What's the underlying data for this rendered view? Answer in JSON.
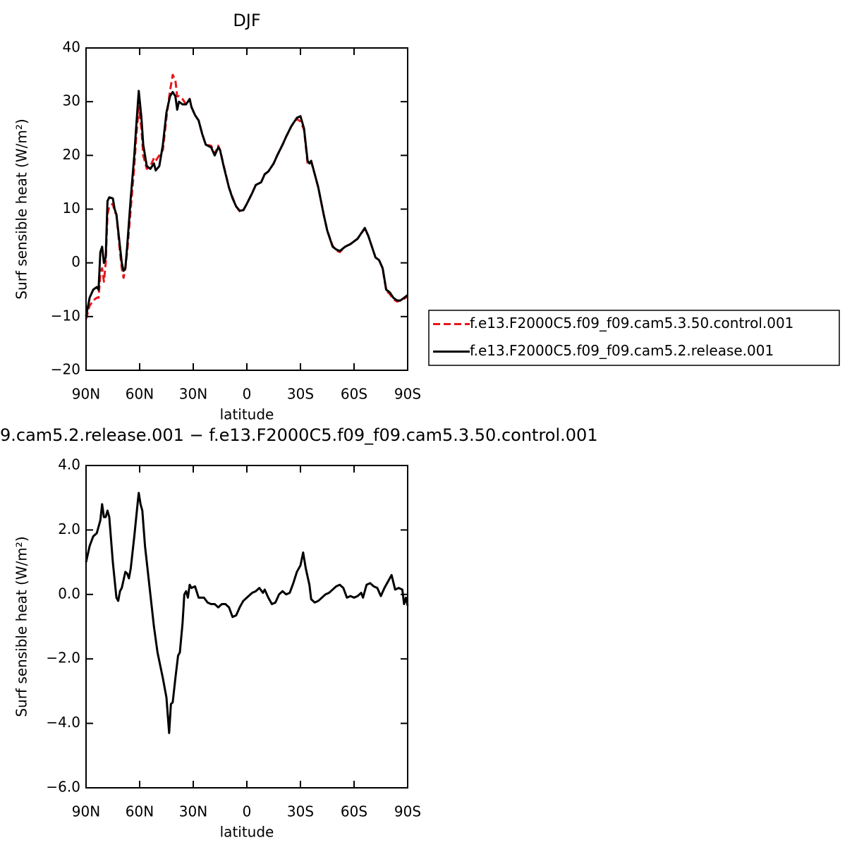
{
  "chart_data": [
    {
      "type": "line",
      "title": "DJF",
      "x_label": "latitude",
      "y_label": "Surf sensible heat (W/m²)",
      "xlim": [
        90,
        -90
      ],
      "ylim": [
        -20,
        40
      ],
      "xticks": [
        {
          "value": 90,
          "label": "90N"
        },
        {
          "value": 60,
          "label": "60N"
        },
        {
          "value": 30,
          "label": "30N"
        },
        0,
        {
          "value": -30,
          "label": "30S"
        },
        {
          "value": -60,
          "label": "60S"
        },
        {
          "value": -90,
          "label": "90S"
        }
      ],
      "yticks": [
        40,
        30,
        20,
        10,
        0,
        {
          "value": -10,
          "label": "−10"
        },
        {
          "value": -20,
          "label": "−20"
        }
      ],
      "legend": "right",
      "x": [
        90,
        88,
        86,
        84,
        83,
        82,
        81,
        80,
        79,
        78,
        77,
        75,
        74,
        73,
        71,
        70,
        69,
        68,
        67,
        65,
        63,
        62,
        60.5,
        59,
        58,
        56,
        54,
        52,
        51,
        49,
        47,
        45,
        43,
        41.5,
        40,
        39,
        38,
        36,
        34,
        32,
        31,
        29,
        27,
        25,
        23,
        20,
        18,
        16,
        15,
        13,
        10,
        8,
        6,
        4,
        2,
        0,
        -3,
        -5,
        -8,
        -10,
        -12,
        -15,
        -17,
        -20,
        -22,
        -25,
        -28,
        -30,
        -32,
        -34,
        -35,
        -36,
        -38,
        -40,
        -43,
        -45,
        -48,
        -50,
        -52,
        -55,
        -58,
        -62,
        -64,
        -66,
        -68,
        -70,
        -72,
        -74,
        -76,
        -78,
        -80,
        -82,
        -84,
        -86,
        -88,
        -90
      ],
      "series": [
        {
          "name": "f.e13.F2000C5.f09_f09.cam5.3.50.control.001",
          "color": "#e8161b",
          "line_style": "dashed",
          "values": [
            -10.5,
            -8,
            -7,
            -6.5,
            -6.5,
            -2,
            -1,
            -3.5,
            0,
            9,
            10.5,
            11,
            9.5,
            9,
            2,
            -1,
            -2.8,
            -1,
            2,
            10,
            18,
            23,
            29,
            25,
            20,
            17.5,
            18,
            19.5,
            19,
            20,
            21,
            27,
            32,
            35,
            34,
            31,
            31,
            30.5,
            29.5,
            30.5,
            29,
            27.5,
            26.5,
            24,
            22,
            21.8,
            20.3,
            21.8,
            21,
            18.2,
            14,
            12.2,
            10.5,
            9.6,
            9.7,
            11,
            13,
            14.5,
            15,
            16.5,
            17,
            18.5,
            20,
            22,
            23.5,
            25.5,
            26.8,
            26.3,
            24.8,
            18.5,
            18.3,
            18.8,
            16.5,
            14,
            9,
            6,
            3.2,
            2.3,
            2,
            3,
            3.5,
            4.5,
            5.5,
            6.3,
            5,
            3,
            1,
            0.5,
            -1,
            -5.2,
            -5.8,
            -6.8,
            -7.2,
            -7,
            -6.7,
            -6.2
          ]
        },
        {
          "name": "f.e13.F2000C5.f09_f09.cam5.2.release.001",
          "color": "#000000",
          "line_style": "solid",
          "values": [
            -10,
            -6.5,
            -5,
            -4.5,
            -5,
            2,
            3,
            0,
            1,
            11.5,
            12.2,
            12,
            10,
            9,
            3,
            0,
            -1.5,
            -1,
            3,
            12,
            20,
            25,
            32,
            27,
            22,
            18,
            17.5,
            18.5,
            17.2,
            18,
            22,
            28,
            31,
            31.8,
            31,
            28.5,
            30,
            29.5,
            29.5,
            30.5,
            29,
            27.5,
            26.5,
            24,
            22,
            21.5,
            20,
            21.5,
            21,
            18,
            14,
            12,
            10.5,
            9.7,
            9.8,
            11,
            13,
            14.5,
            15,
            16.5,
            17,
            18.5,
            20,
            22,
            23.5,
            25.5,
            27,
            27.3,
            25,
            19,
            18.5,
            19,
            16.5,
            14,
            9,
            6,
            3,
            2.5,
            2.2,
            3,
            3.5,
            4.5,
            5.5,
            6.5,
            5,
            3,
            1,
            0.5,
            -1,
            -5,
            -5.5,
            -6.5,
            -7,
            -7,
            -6.5,
            -6
          ]
        }
      ]
    },
    {
      "type": "line",
      "title": "9.cam5.2.release.001 − f.e13.F2000C5.f09_f09.cam5.3.50.control.001",
      "x_label": "latitude",
      "y_label": "Surf sensible heat (W/m²)",
      "xlim": [
        90,
        -90
      ],
      "ylim": [
        -6,
        4
      ],
      "xticks": [
        {
          "value": 90,
          "label": "90N"
        },
        {
          "value": 60,
          "label": "60N"
        },
        {
          "value": 30,
          "label": "30N"
        },
        0,
        {
          "value": -30,
          "label": "30S"
        },
        {
          "value": -60,
          "label": "60S"
        },
        {
          "value": -90,
          "label": "90S"
        }
      ],
      "yticks": [
        {
          "value": 4,
          "label": "4.0"
        },
        {
          "value": 2,
          "label": "2.0"
        },
        {
          "value": 0,
          "label": "0.0"
        },
        {
          "value": -2,
          "label": "−2.0"
        },
        {
          "value": -4,
          "label": "−4.0"
        },
        {
          "value": -6,
          "label": "−6.0"
        }
      ],
      "x": [
        90,
        88,
        86,
        84,
        82,
        81,
        80,
        79,
        78,
        77,
        75,
        73,
        72,
        71,
        70,
        68,
        67,
        66,
        65,
        63,
        61,
        60.5,
        59.5,
        58.5,
        57,
        56,
        54,
        52,
        50,
        48.5,
        47,
        45,
        43.5,
        42.5,
        41.5,
        40,
        38.5,
        37.5,
        36,
        35,
        34,
        33,
        32,
        31,
        29,
        27,
        24,
        22,
        20,
        18,
        16,
        14,
        12,
        10,
        8,
        6,
        4,
        2,
        0,
        -3,
        -5,
        -7,
        -9,
        -10,
        -12,
        -14,
        -16,
        -18,
        -20,
        -22,
        -24,
        -26,
        -28,
        -30,
        -31.5,
        -33,
        -35,
        -36,
        -38,
        -40,
        -42,
        -44,
        -46,
        -48,
        -50,
        -52,
        -54,
        -56,
        -58,
        -60,
        -62,
        -64,
        -65,
        -67,
        -69,
        -71,
        -73,
        -75,
        -77,
        -79,
        -81,
        -83,
        -85,
        -87,
        -88,
        -89,
        -90
      ],
      "series": [
        {
          "color": "#000000",
          "line_style": "solid",
          "values": [
            1.0,
            1.5,
            1.8,
            1.9,
            2.3,
            2.8,
            2.4,
            2.4,
            2.6,
            2.4,
            1.0,
            -0.1,
            -0.2,
            0.1,
            0.2,
            0.7,
            0.65,
            0.5,
            0.8,
            1.8,
            2.9,
            3.15,
            2.8,
            2.6,
            1.5,
            1.0,
            0,
            -1,
            -1.8,
            -2.2,
            -2.6,
            -3.2,
            -4.3,
            -3.4,
            -3.35,
            -2.6,
            -1.9,
            -1.8,
            -0.9,
            0,
            0.1,
            -0.1,
            0.3,
            0.2,
            0.25,
            -0.1,
            -0.1,
            -0.25,
            -0.3,
            -0.3,
            -0.4,
            -0.3,
            -0.3,
            -0.4,
            -0.7,
            -0.65,
            -0.4,
            -0.2,
            -0.1,
            0.05,
            0.1,
            0.2,
            0.05,
            0.15,
            -0.1,
            -0.3,
            -0.25,
            0,
            0.1,
            0,
            0.05,
            0.35,
            0.7,
            0.9,
            1.3,
            0.8,
            0.3,
            -0.15,
            -0.25,
            -0.2,
            -0.1,
            0,
            0.05,
            0.15,
            0.25,
            0.3,
            0.2,
            -0.1,
            -0.05,
            -0.1,
            -0.05,
            0.05,
            -0.1,
            0.3,
            0.35,
            0.25,
            0.2,
            -0.05,
            0.2,
            0.4,
            0.6,
            0.15,
            0.2,
            0.15,
            -0.3,
            -0.1,
            -0.35
          ]
        }
      ]
    }
  ]
}
